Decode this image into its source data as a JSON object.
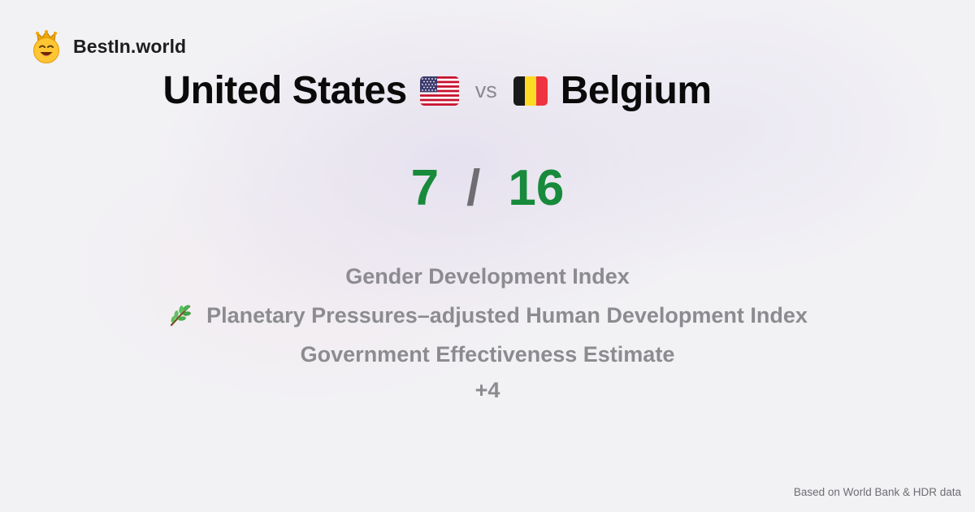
{
  "brand": {
    "name": "BestIn.world",
    "logo_icon": "smiling-crown-face-icon"
  },
  "comparison": {
    "country_a": "United States",
    "country_a_flag_icon": "us-flag-icon",
    "vs_label": "vs",
    "country_b": "Belgium",
    "country_b_flag_icon": "belgium-flag-icon"
  },
  "score": {
    "a": "7",
    "separator": "/",
    "b": "16",
    "color": "#178a3b"
  },
  "metrics": [
    {
      "label": "Gender Development Index"
    },
    {
      "label": "Planetary Pressures–adjusted Human Development Index",
      "icon": "herb-sprig-icon"
    },
    {
      "label": "Government Effectiveness Estimate"
    }
  ],
  "more_label": "+4",
  "footer": {
    "source": "Based on World Bank & HDR data"
  }
}
